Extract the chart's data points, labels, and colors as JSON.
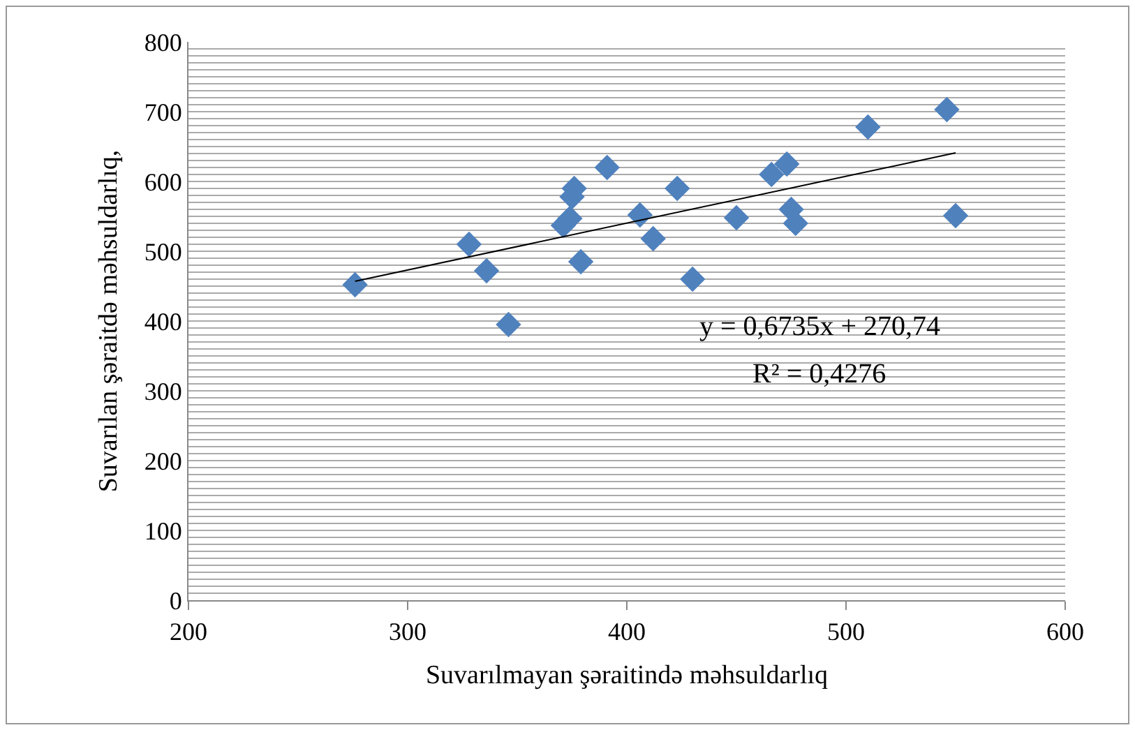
{
  "chart_data": {
    "type": "scatter",
    "xlabel": "Suvarılmayan şəraitində məhsuldarlıq",
    "ylabel": "Suvarılan şəraitdə məhsuldarlıq,",
    "x": [
      276,
      328,
      336,
      346,
      371,
      374,
      375,
      376,
      379,
      391,
      406,
      412,
      423,
      430,
      450,
      466,
      473,
      475,
      477,
      510,
      546,
      550
    ],
    "series": [
      {
        "color": "#4f81bd",
        "marker": "diamond",
        "values": [
          452,
          510,
          472,
          395,
          537,
          547,
          578,
          590,
          485,
          620,
          552,
          518,
          590,
          460,
          548,
          610,
          625,
          560,
          540,
          678,
          703,
          551
        ]
      },
      {
        "type": "line",
        "marker": "none",
        "color": "#000000",
        "x": [
          276,
          550
        ],
        "values": [
          457,
          641
        ]
      }
    ],
    "grid": "y",
    "legend": false,
    "xlim": [
      200,
      600
    ],
    "xticks": [
      200,
      300,
      400,
      500,
      600
    ],
    "ylim": [
      0,
      800
    ],
    "yticks": [
      0,
      {
        "value": 10,
        "label": null
      },
      {
        "value": 20,
        "label": null
      },
      {
        "value": 30,
        "label": null
      },
      {
        "value": 40,
        "label": null
      },
      {
        "value": 50,
        "label": null
      },
      {
        "value": 60,
        "label": null
      },
      {
        "value": 70,
        "label": null
      },
      {
        "value": 80,
        "label": null
      },
      {
        "value": 90,
        "label": null
      },
      100,
      {
        "value": 110,
        "label": null
      },
      {
        "value": 120,
        "label": null
      },
      {
        "value": 130,
        "label": null
      },
      {
        "value": 140,
        "label": null
      },
      {
        "value": 150,
        "label": null
      },
      {
        "value": 160,
        "label": null
      },
      {
        "value": 170,
        "label": null
      },
      {
        "value": 180,
        "label": null
      },
      {
        "value": 190,
        "label": null
      },
      200,
      {
        "value": 210,
        "label": null
      },
      {
        "value": 220,
        "label": null
      },
      {
        "value": 230,
        "label": null
      },
      {
        "value": 240,
        "label": null
      },
      {
        "value": 250,
        "label": null
      },
      {
        "value": 260,
        "label": null
      },
      {
        "value": 270,
        "label": null
      },
      {
        "value": 280,
        "label": null
      },
      {
        "value": 290,
        "label": null
      },
      300,
      {
        "value": 310,
        "label": null
      },
      {
        "value": 320,
        "label": null
      },
      {
        "value": 330,
        "label": null
      },
      {
        "value": 340,
        "label": null
      },
      {
        "value": 350,
        "label": null
      },
      {
        "value": 360,
        "label": null
      },
      {
        "value": 370,
        "label": null
      },
      {
        "value": 380,
        "label": null
      },
      {
        "value": 390,
        "label": null
      },
      400,
      {
        "value": 410,
        "label": null
      },
      {
        "value": 420,
        "label": null
      },
      {
        "value": 430,
        "label": null
      },
      {
        "value": 440,
        "label": null
      },
      {
        "value": 450,
        "label": null
      },
      {
        "value": 460,
        "label": null
      },
      {
        "value": 470,
        "label": null
      },
      {
        "value": 480,
        "label": null
      },
      {
        "value": 490,
        "label": null
      },
      500,
      {
        "value": 510,
        "label": null
      },
      {
        "value": 520,
        "label": null
      },
      {
        "value": 530,
        "label": null
      },
      {
        "value": 540,
        "label": null
      },
      {
        "value": 550,
        "label": null
      },
      {
        "value": 560,
        "label": null
      },
      {
        "value": 570,
        "label": null
      },
      {
        "value": 580,
        "label": null
      },
      {
        "value": 590,
        "label": null
      },
      600,
      {
        "value": 610,
        "label": null
      },
      {
        "value": 620,
        "label": null
      },
      {
        "value": 630,
        "label": null
      },
      {
        "value": 640,
        "label": null
      },
      {
        "value": 650,
        "label": null
      },
      {
        "value": 660,
        "label": null
      },
      {
        "value": 670,
        "label": null
      },
      {
        "value": 680,
        "label": null
      },
      {
        "value": 690,
        "label": null
      },
      700,
      {
        "value": 710,
        "label": null
      },
      {
        "value": 720,
        "label": null
      },
      {
        "value": 730,
        "label": null
      },
      {
        "value": 740,
        "label": null
      },
      {
        "value": 750,
        "label": null
      },
      {
        "value": 760,
        "label": null
      },
      {
        "value": 770,
        "label": null
      },
      {
        "value": 780,
        "label": null
      },
      {
        "value": 790,
        "label": null
      },
      800
    ],
    "annotations": [
      "y = 0,6735x + 270,74",
      "R² = 0,4276"
    ]
  }
}
